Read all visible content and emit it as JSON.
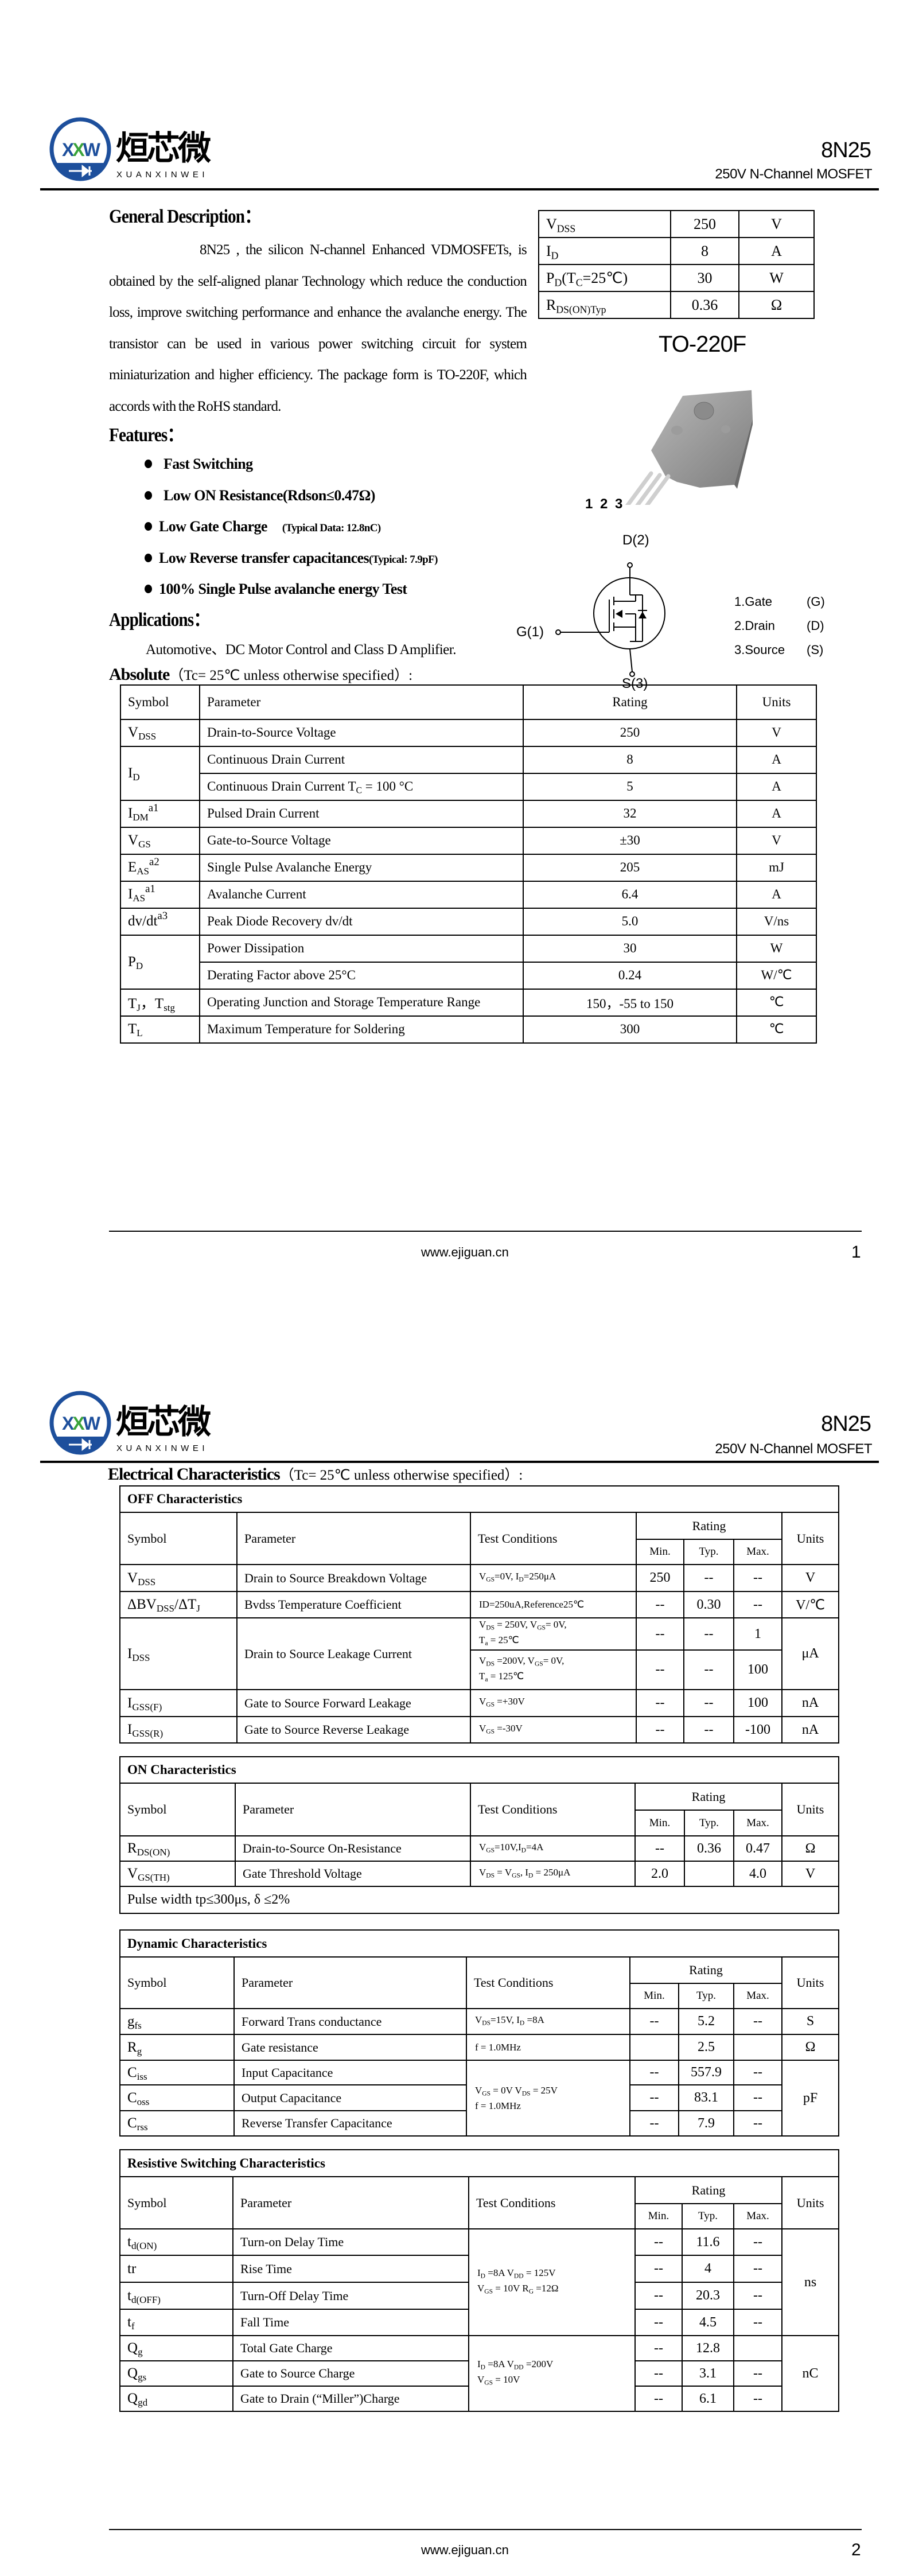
{
  "header": {
    "logo_mark": "XXW",
    "brand_cn": "烜芯微",
    "brand_en": "XUANXINWEI",
    "part": "8N25",
    "subtitle": "250V N-Channel MOSFET",
    "logo_colors": {
      "ring": "#1d4f9c",
      "accent": "#3aa33a"
    }
  },
  "page1": {
    "general_heading": "General Description：",
    "general_text": "8N25 , the silicon N-channel Enhanced VDMOSFETs, is obtained by the self-aligned planar Technology which reduce the conduction loss, improve switching performance and enhance the avalanche energy. The transistor can be used in various power switching circuit for system miniaturization and higher efficiency. The package form is TO-220F, which accords with the RoHS standard.",
    "features_heading": "Features：",
    "features": [
      {
        "main": "Fast Switching",
        "note": ""
      },
      {
        "main": "Low ON Resistance(Rdson≤0.47Ω)",
        "note": ""
      },
      {
        "main": "Low Gate Charge",
        "note": "(Typical Data: 12.8nC)"
      },
      {
        "main": "Low Reverse transfer capacitances",
        "note": "(Typical: 7.9pF)"
      },
      {
        "main": "100% Single Pulse avalanche energy Test",
        "note": ""
      }
    ],
    "applications_heading": "Applications：",
    "applications_text": "Automotive、DC Motor Control and Class D Amplifier.",
    "spec_table": [
      [
        "V_{DSS}",
        "250",
        "V"
      ],
      [
        "I_{D}",
        "8",
        "A"
      ],
      [
        "P_{D}(T_{C}=25℃)",
        "30",
        "W"
      ],
      [
        "R_{DS(ON)Typ}",
        "0.36",
        "Ω"
      ]
    ],
    "package_label": "TO-220F",
    "package_pins": "1 2 3",
    "schematic": {
      "drain": "D(2)",
      "gate": "G(1)",
      "source": "S(3)"
    },
    "pin_legend": [
      [
        "1.Gate",
        "(G)"
      ],
      [
        "2.Drain",
        "(D)"
      ],
      [
        "3.Source",
        "(S)"
      ]
    ],
    "absolute_heading_bold": "Absolute",
    "absolute_heading_rest": "（Tc= 25℃  unless otherwise specified）:",
    "absolute_table": {
      "headers": [
        "Symbol",
        "Parameter",
        "Rating",
        "Units"
      ],
      "rows": [
        [
          "V_{DSS}",
          "Drain-to-Source Voltage",
          "250",
          "V"
        ],
        [
          {
            "t": "I_{D}",
            "rs": 2
          },
          "Continuous Drain Current",
          "8",
          "A"
        ],
        [
          null,
          "Continuous Drain Current T_{C} = 100 °C",
          "5",
          "A"
        ],
        [
          "I_{DM}^{a1}",
          "Pulsed Drain Current",
          "32",
          "A"
        ],
        [
          "V_{GS}",
          "Gate-to-Source Voltage",
          "±30",
          "V"
        ],
        [
          "E_{AS}^{a2}",
          "Single Pulse Avalanche Energy",
          "205",
          "mJ"
        ],
        [
          "I_{AS}^{a1}",
          "Avalanche Current",
          "6.4",
          "A"
        ],
        [
          "dv/dt^{a3}",
          "Peak Diode Recovery dv/dt",
          "5.0",
          "V/ns"
        ],
        [
          {
            "t": "P_{D}",
            "rs": 2
          },
          "Power Dissipation",
          "30",
          "W"
        ],
        [
          null,
          "Derating Factor above 25°C",
          "0.24",
          "W/℃"
        ],
        [
          "T_{J}，T_{stg}",
          "Operating Junction and Storage Temperature Range",
          "150，-55 to 150",
          "℃"
        ],
        [
          "T_{L}",
          "Maximum Temperature for Soldering",
          "300",
          "℃"
        ]
      ]
    },
    "footer_url": "www.ejiguan.cn",
    "page_number": "1"
  },
  "page2": {
    "heading_bold": "Electrical Characteristics",
    "heading_rest": "（Tc= 25℃  unless otherwise specified）:",
    "col_headers": {
      "symbol": "Symbol",
      "parameter": "Parameter",
      "test": "Test Conditions",
      "rating": "Rating",
      "min": "Min.",
      "typ": "Typ.",
      "max": "Max.",
      "units": "Units"
    },
    "tables": [
      {
        "title": "OFF Characteristics",
        "rows": [
          [
            "V_{DSS}",
            "Drain to Source Breakdown Voltage",
            "V_{GS}=0V, I_{D}=250μA",
            "250",
            "--",
            "--",
            "V"
          ],
          [
            "ΔBV_{DSS}/ΔT_{J}",
            "Bvdss Temperature Coefficient",
            "ID=250uA,Reference25℃",
            "--",
            "0.30",
            "--",
            "V/℃"
          ],
          [
            {
              "t": "I_{DSS}",
              "rs": 2
            },
            {
              "t": "Drain to Source Leakage Current",
              "rs": 2
            },
            "V_{DS} = 250V, V_{GS}= 0V,\nT_{a} = 25℃",
            "--",
            "--",
            "1",
            {
              "t": "μA",
              "rs": 2
            }
          ],
          [
            null,
            null,
            "V_{DS} =200V, V_{GS}= 0V,\nT_{a} = 125℃",
            "--",
            "--",
            "100",
            null
          ],
          [
            "I_{GSS(F)}",
            "Gate to Source Forward Leakage",
            "V_{GS} =+30V",
            "--",
            "--",
            "100",
            "nA"
          ],
          [
            "I_{GSS(R)}",
            "Gate to Source Reverse Leakage",
            "V_{GS} =-30V",
            "--",
            "--",
            "-100",
            "nA"
          ]
        ]
      },
      {
        "title": "ON Characteristics",
        "rows": [
          [
            "R_{DS(ON)}",
            "Drain-to-Source On-Resistance",
            "V_{GS}=10V,I_{D}=4A",
            "--",
            "0.36",
            "0.47",
            "Ω"
          ],
          [
            "V_{GS(TH)}",
            "Gate Threshold Voltage",
            "V_{DS} = V_{GS}, I_{D} = 250μA",
            "2.0",
            "",
            "4.0",
            "V"
          ]
        ],
        "footnote": "Pulse width tp≤300μs, δ ≤2%"
      },
      {
        "title": "Dynamic Characteristics",
        "rows": [
          [
            "g_{fs}",
            "Forward Trans conductance",
            "V_{DS}=15V, I_{D} =8A",
            "--",
            "5.2",
            "--",
            "S"
          ],
          [
            "R_{g}",
            "Gate resistance",
            "f = 1.0MHz",
            "",
            "2.5",
            "",
            "Ω"
          ],
          [
            "C_{iss}",
            "Input Capacitance",
            {
              "t": "V_{GS} = 0V V_{DS} = 25V\nf = 1.0MHz",
              "rs": 3
            },
            "--",
            "557.9",
            "--",
            {
              "t": "pF",
              "rs": 3
            }
          ],
          [
            "C_{oss}",
            "Output Capacitance",
            null,
            "--",
            "83.1",
            "--",
            null
          ],
          [
            "C_{rss}",
            "Reverse Transfer Capacitance",
            null,
            "--",
            "7.9",
            "--",
            null
          ]
        ]
      },
      {
        "title": "Resistive Switching Characteristics",
        "rows": [
          [
            "t_{d(ON)}",
            "Turn-on Delay Time",
            {
              "t": "I_{D} =8A     V_{DD} = 125V\nV_{GS} = 10V    R_{G} =12Ω",
              "rs": 4
            },
            "--",
            "11.6",
            "--",
            {
              "t": "ns",
              "rs": 4
            }
          ],
          [
            "tr",
            "Rise Time",
            null,
            "--",
            "4",
            "--",
            null
          ],
          [
            "t_{d(OFF)}",
            "Turn-Off Delay Time",
            null,
            "--",
            "20.3",
            "--",
            null
          ],
          [
            "t_{f}",
            "Fall Time",
            null,
            "--",
            "4.5",
            "--",
            null
          ],
          [
            "Q_{g}",
            "Total Gate Charge",
            {
              "t": "I_{D} =8A    V_{DD} =200V\nV_{GS} = 10V",
              "rs": 3
            },
            "--",
            "12.8",
            "",
            {
              "t": "nC",
              "rs": 3
            }
          ],
          [
            "Q_{gs}",
            "Gate to Source Charge",
            null,
            "--",
            "3.1",
            "--",
            null
          ],
          [
            "Q_{gd}",
            "Gate to Drain (“Miller”)Charge",
            null,
            "--",
            "6.1",
            "--",
            null
          ]
        ]
      }
    ],
    "footer_url": "www.ejiguan.cn",
    "page_number": "2"
  }
}
